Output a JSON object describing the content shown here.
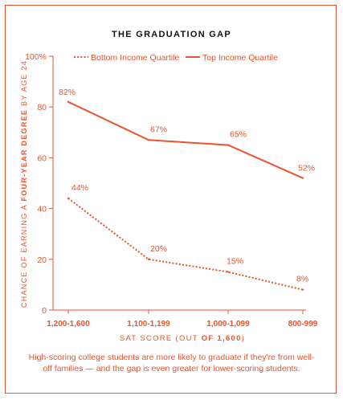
{
  "colors": {
    "accent": "#e8542d",
    "title": "#111111"
  },
  "caption": "High-scoring college students are more likely to graduate if they're from well-off families — and the gap is even greater for lower-scoring students.",
  "chart_data": {
    "type": "line",
    "title": "THE GRADUATION GAP",
    "ylabel_parts": [
      "CHANCE OF EARNING A ",
      "FOUR-YEAR DEGREE",
      " BY AGE 24"
    ],
    "xlabel_parts": [
      "SAT SCORE (OUT ",
      "OF 1,600",
      ")"
    ],
    "categories": [
      "1,200-1,600",
      "1,100-1,199",
      "1,000-1,099",
      "800-999"
    ],
    "ylim": [
      0,
      100
    ],
    "yticks": [
      {
        "value": 0,
        "label": "0"
      },
      {
        "value": 20,
        "label": "20"
      },
      {
        "value": 40,
        "label": "40"
      },
      {
        "value": 60,
        "label": "60"
      },
      {
        "value": 80,
        "label": "80"
      },
      {
        "value": 100,
        "label": "100%"
      }
    ],
    "grid": false,
    "legend_position": "top",
    "series": [
      {
        "name": "Bottom Income Quartile",
        "style": "dotted",
        "values": [
          44,
          20,
          15,
          8
        ],
        "labels": [
          "44%",
          "20%",
          "15%",
          "8%"
        ]
      },
      {
        "name": "Top Income Quartile",
        "style": "solid",
        "values": [
          82,
          67,
          65,
          52
        ],
        "labels": [
          "82%",
          "67%",
          "65%",
          "52%"
        ]
      }
    ]
  }
}
